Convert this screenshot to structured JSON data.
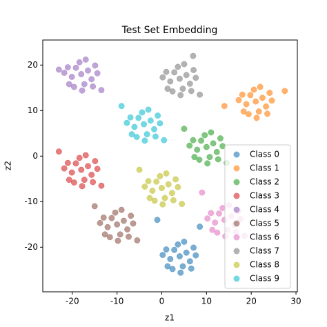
{
  "chart_data": {
    "type": "scatter",
    "title": "Test Set Embedding",
    "x_label": "z1",
    "y_label": "z2",
    "xlim": [
      -26.6,
      30.3
    ],
    "ylim": [
      -29.8,
      25.5
    ],
    "xticks": [
      -20,
      -10,
      0,
      10,
      20,
      30
    ],
    "yticks": [
      -20,
      -10,
      0,
      10,
      20
    ],
    "grid": false,
    "legend": "lower right",
    "alpha": 0.6,
    "series": [
      {
        "name": "Class 0",
        "color": "#1f77b4",
        "x": [
          4,
          5.5,
          2.8,
          6.3,
          1.9,
          4.7,
          3.6,
          7.1,
          1,
          5,
          2.4,
          6.6,
          1.3,
          7.6,
          0.2,
          4.2,
          8.5,
          -1
        ],
        "y": [
          -22,
          -21.2,
          -20.6,
          -23.1,
          -22.6,
          -24.2,
          -19.4,
          -20.1,
          -20.5,
          -18.8,
          -24.8,
          -24.7,
          -24.2,
          -21.8,
          -21.7,
          -25.6,
          -15.5,
          -14
        ]
      },
      {
        "name": "Class 1",
        "color": "#ff7f0e",
        "x": [
          21,
          22.5,
          19.8,
          23.3,
          18.9,
          21.7,
          20.6,
          24.1,
          18,
          22,
          19.4,
          23.6,
          18.3,
          24.6,
          17.2,
          21.2,
          27.5,
          14
        ],
        "y": [
          12,
          12.8,
          13.4,
          10.9,
          11.4,
          9.8,
          14.6,
          13.9,
          13.5,
          15.2,
          9.2,
          9.3,
          9.8,
          12.2,
          12.3,
          8.4,
          14.3,
          11
        ]
      },
      {
        "name": "Class 2",
        "color": "#2ca02c",
        "x": [
          10,
          11.5,
          8.8,
          12.3,
          7.9,
          10.7,
          9.6,
          13.1,
          7,
          11,
          8.4,
          12.6,
          7.3,
          13.6,
          6.2,
          10.2,
          14.5,
          5
        ],
        "y": [
          2,
          2.8,
          3.4,
          0.9,
          1.4,
          -0.2,
          4.6,
          3.9,
          3.5,
          5.2,
          -0.8,
          -0.7,
          -0.2,
          2.2,
          2.3,
          -1.6,
          -1.5,
          6
        ]
      },
      {
        "name": "Class 3",
        "color": "#d62728",
        "x": [
          -18,
          -16.5,
          -19.2,
          -15.7,
          -20.1,
          -17.3,
          -18.4,
          -14.9,
          -21,
          -17,
          -19.6,
          -15.4,
          -20.7,
          -14.4,
          -21.8,
          -17.8,
          -13.5,
          -23
        ],
        "y": [
          -3,
          -2.2,
          -1.6,
          -4.1,
          -3.6,
          -5.2,
          -0.4,
          -1.1,
          -1.5,
          0.2,
          -5.8,
          -5.7,
          -5.2,
          -2.8,
          -2.7,
          -6.6,
          -6.5,
          1
        ]
      },
      {
        "name": "Class 4",
        "color": "#9467bd",
        "x": [
          -18,
          -16.5,
          -19.2,
          -15.7,
          -20.1,
          -17.3,
          -18.4,
          -14.9,
          -21,
          -17,
          -19.6,
          -15.4,
          -20.7,
          -14.4,
          -21.8,
          -17.8,
          -13.5,
          -23
        ],
        "y": [
          18,
          18.8,
          19.4,
          16.9,
          17.4,
          15.8,
          20.6,
          19.9,
          19.5,
          21.2,
          15.2,
          15.3,
          15.8,
          18.2,
          18.3,
          14.4,
          14.5,
          19
        ]
      },
      {
        "name": "Class 5",
        "color": "#8c564b",
        "x": [
          -10,
          -8.5,
          -11.2,
          -7.7,
          -12.1,
          -9.3,
          -10.4,
          -6.9,
          -13,
          -9,
          -11.6,
          -7.4,
          -12.7,
          -6.4,
          -13.8,
          -9.8,
          -5.5,
          -15
        ],
        "y": [
          -15,
          -14.2,
          -13.6,
          -16.1,
          -15.6,
          -17.2,
          -12.4,
          -13.1,
          -13.5,
          -11.8,
          -17.8,
          -17.7,
          -17.2,
          -14.8,
          -14.7,
          -18.6,
          -18.5,
          -11
        ]
      },
      {
        "name": "Class 6",
        "color": "#e377c2",
        "x": [
          14,
          15.5,
          12.8,
          16.3,
          11.9,
          14.7,
          13.6,
          17.1,
          11,
          15,
          12.4,
          16.6,
          11.3,
          17.6,
          10.2,
          14.2,
          18.5,
          9
        ],
        "y": [
          -14,
          -13.2,
          -12.6,
          -15.1,
          -14.6,
          -16.2,
          -11.4,
          -12.1,
          -12.5,
          -10.8,
          -16.8,
          -16.7,
          -16.2,
          -13.8,
          -13.7,
          -17.6,
          -17.5,
          -8
        ]
      },
      {
        "name": "Class 7",
        "color": "#7f7f7f",
        "x": [
          4,
          5.5,
          2.8,
          6.3,
          1.9,
          4.7,
          3.6,
          7.1,
          1,
          5,
          2.4,
          6.6,
          1.3,
          7.6,
          0.2,
          4.2,
          8.5,
          7
        ],
        "y": [
          17,
          17.8,
          18.4,
          15.9,
          16.4,
          14.8,
          19.6,
          18.9,
          18.5,
          20.2,
          14.2,
          14.3,
          14.8,
          17.2,
          17.3,
          13.4,
          13.5,
          22
        ]
      },
      {
        "name": "Class 8",
        "color": "#bcbd22",
        "x": [
          0,
          1.5,
          -1.2,
          2.3,
          -2.1,
          0.7,
          -0.4,
          3.1,
          -3,
          1,
          -1.6,
          2.6,
          -2.7,
          3.6,
          -3.8,
          0.2,
          4.5,
          -5
        ],
        "y": [
          -7,
          -6.2,
          -5.6,
          -8.1,
          -7.6,
          -9.2,
          -4.4,
          -5.1,
          -5.5,
          -3.8,
          -9.8,
          -9.7,
          -9.2,
          -6.8,
          -6.7,
          -10.6,
          -10.5,
          -3
        ]
      },
      {
        "name": "Class 9",
        "color": "#17becf",
        "x": [
          -4,
          -2.5,
          -5.2,
          -1.7,
          -6.1,
          -3.3,
          -4.4,
          -0.9,
          -7,
          -3,
          -5.6,
          -1.4,
          -6.7,
          -0.4,
          -7.8,
          -3.8,
          0.5,
          -9
        ],
        "y": [
          7,
          7.8,
          8.4,
          5.9,
          6.4,
          4.8,
          9.6,
          8.9,
          8.5,
          10.2,
          4.2,
          4.3,
          4.8,
          7.2,
          7.3,
          3.4,
          3.5,
          11
        ]
      }
    ]
  }
}
